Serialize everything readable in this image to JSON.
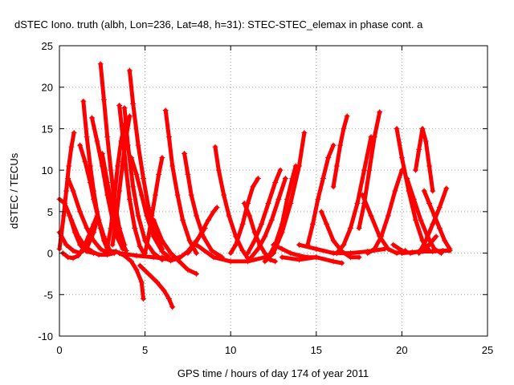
{
  "chart_data": {
    "type": "scatter",
    "title": "dSTEC Iono. truth (albh, Lon=236, Lat=48, h=31): STEC-STEC_elemax in phase cont. a",
    "xlabel": "GPS time / hours of day 174 of year 2011",
    "ylabel": "dSTEC  / TECUs",
    "xlim": [
      0,
      25
    ],
    "ylim": [
      -10,
      25
    ],
    "xticks": [
      0,
      5,
      10,
      15,
      20,
      25
    ],
    "yticks": [
      -10,
      -5,
      0,
      5,
      10,
      15,
      20,
      25
    ],
    "grid": true,
    "marker": "plus",
    "color": "#ff0000",
    "series": [
      {
        "x": [
          0.0,
          0.3,
          0.6,
          0.9,
          1.2,
          1.6,
          2.0
        ],
        "y": [
          6.5,
          6.0,
          4.5,
          2.5,
          1.0,
          0.2,
          0.0
        ]
      },
      {
        "x": [
          0.0,
          0.1,
          0.25,
          0.4,
          0.55,
          0.7,
          0.85
        ],
        "y": [
          0.5,
          2.0,
          4.5,
          7.5,
          10.5,
          12.8,
          14.5
        ]
      },
      {
        "x": [
          0.0,
          0.4,
          0.8,
          1.2,
          1.6,
          2.0,
          2.2
        ],
        "y": [
          2.5,
          1.0,
          0.3,
          0.0,
          0.6,
          2.5,
          4.0
        ]
      },
      {
        "x": [
          0.3,
          0.7,
          1.1,
          1.5,
          1.9,
          2.3,
          2.8,
          3.2
        ],
        "y": [
          6.0,
          4.0,
          2.0,
          0.8,
          0.2,
          -0.2,
          -0.2,
          0.0
        ]
      },
      {
        "x": [
          0.5,
          0.8,
          1.2,
          1.6,
          2.0,
          2.4,
          2.8
        ],
        "y": [
          9.0,
          7.5,
          5.0,
          3.0,
          1.5,
          0.5,
          0.0
        ]
      },
      {
        "x": [
          0.2,
          0.5,
          0.8,
          1.1,
          1.4,
          1.7,
          2.0,
          2.2
        ],
        "y": [
          0.0,
          -0.5,
          -0.6,
          -0.3,
          0.6,
          2.0,
          3.5,
          4.5
        ]
      },
      {
        "x": [
          1.4,
          1.6,
          1.8,
          2.0,
          2.2,
          2.4,
          2.6,
          2.8
        ],
        "y": [
          18.3,
          14.0,
          10.5,
          7.5,
          5.0,
          3.0,
          1.5,
          0.5
        ]
      },
      {
        "x": [
          1.2,
          1.5,
          1.8,
          2.0,
          2.3,
          2.6,
          2.9
        ],
        "y": [
          13.0,
          11.0,
          8.5,
          6.5,
          4.0,
          2.0,
          0.5
        ]
      },
      {
        "x": [
          1.9,
          2.2,
          2.5,
          2.8,
          3.1,
          3.4,
          3.7
        ],
        "y": [
          16.3,
          13.5,
          10.5,
          7.0,
          4.0,
          1.8,
          0.5
        ]
      },
      {
        "x": [
          2.4,
          2.6,
          2.8,
          3.0,
          3.2,
          3.5,
          3.8
        ],
        "y": [
          22.8,
          18.5,
          14.0,
          10.0,
          6.5,
          3.0,
          1.0
        ]
      },
      {
        "x": [
          2.5,
          2.8,
          3.1,
          3.3,
          3.6,
          3.9
        ],
        "y": [
          12.0,
          8.5,
          5.5,
          3.5,
          1.5,
          0.3
        ]
      },
      {
        "x": [
          2.8,
          3.0,
          3.2,
          3.4,
          3.6,
          3.8
        ],
        "y": [
          0.8,
          3.0,
          6.5,
          10.5,
          13.5,
          15.5
        ]
      },
      {
        "x": [
          3.1,
          3.3,
          3.5,
          3.7,
          3.9,
          4.1
        ],
        "y": [
          1.0,
          4.0,
          7.5,
          11.0,
          14.0,
          16.5
        ]
      },
      {
        "x": [
          3.5,
          3.7,
          3.9,
          4.1,
          4.4,
          4.7,
          5.0
        ],
        "y": [
          17.8,
          14.0,
          10.0,
          6.5,
          3.0,
          0.8,
          -0.3
        ]
      },
      {
        "x": [
          3.8,
          4.0,
          4.3,
          4.6,
          5.0,
          5.5,
          6.0
        ],
        "y": [
          17.5,
          13.0,
          8.0,
          4.5,
          1.5,
          0.0,
          -0.8
        ]
      },
      {
        "x": [
          2.8,
          3.3,
          3.8,
          4.2,
          4.5,
          4.8,
          4.9
        ],
        "y": [
          0.2,
          0.2,
          -0.3,
          -1.0,
          -2.0,
          -3.5,
          -5.5
        ]
      },
      {
        "x": [
          4.1,
          4.3,
          4.6,
          4.9,
          5.2,
          5.6,
          6.0
        ],
        "y": [
          22.0,
          18.0,
          13.0,
          9.0,
          5.5,
          2.5,
          0.5
        ]
      },
      {
        "x": [
          4.2,
          4.5,
          4.8,
          5.1,
          5.5,
          6.0,
          6.4
        ],
        "y": [
          11.5,
          9.5,
          7.0,
          4.5,
          2.0,
          0.2,
          -0.5
        ]
      },
      {
        "x": [
          4.7,
          5.2,
          5.7,
          6.1,
          6.4,
          6.6
        ],
        "y": [
          -1.5,
          -2.5,
          -3.5,
          -4.5,
          -5.5,
          -6.5
        ]
      },
      {
        "x": [
          3.5,
          4.5,
          5.5,
          6.5,
          7.0
        ],
        "y": [
          0.0,
          -0.3,
          -0.5,
          -0.8,
          -0.5
        ]
      },
      {
        "x": [
          5.0,
          5.2,
          5.4,
          5.6,
          5.8,
          6.0
        ],
        "y": [
          0.0,
          2.0,
          4.5,
          7.0,
          9.5,
          11.5
        ]
      },
      {
        "x": [
          6.2,
          6.4,
          6.6,
          6.9,
          7.2,
          7.6,
          8.0
        ],
        "y": [
          17.2,
          14.0,
          10.5,
          7.0,
          4.0,
          1.5,
          0.0
        ]
      },
      {
        "x": [
          5.5,
          6.0,
          6.5,
          7.0,
          7.5,
          8.0
        ],
        "y": [
          4.0,
          1.5,
          0.0,
          -1.0,
          -2.0,
          -2.5
        ]
      },
      {
        "x": [
          6.0,
          6.5,
          7.0,
          7.5,
          8.0,
          8.5
        ],
        "y": [
          -0.5,
          -0.9,
          -0.6,
          0.2,
          1.5,
          3.0
        ]
      },
      {
        "x": [
          7.3,
          7.5,
          7.7,
          8.0,
          8.4,
          8.9,
          9.5
        ],
        "y": [
          12.0,
          9.5,
          7.0,
          4.5,
          2.0,
          0.3,
          -0.5
        ]
      },
      {
        "x": [
          7.5,
          7.9,
          8.3,
          8.7,
          9.0,
          9.2
        ],
        "y": [
          0.0,
          1.0,
          2.5,
          4.0,
          5.0,
          5.5
        ]
      },
      {
        "x": [
          9.1,
          9.3,
          9.6,
          9.9,
          10.3,
          10.7,
          11.0
        ],
        "y": [
          12.8,
          10.0,
          7.0,
          4.5,
          2.0,
          0.3,
          -0.6
        ]
      },
      {
        "x": [
          8.0,
          9.0,
          10.0,
          11.0,
          12.0,
          12.5
        ],
        "y": [
          1.0,
          -0.5,
          -1.0,
          -1.0,
          -0.5,
          0.0
        ]
      },
      {
        "x": [
          10.0,
          10.3,
          10.7,
          11.0,
          11.3,
          11.6
        ],
        "y": [
          0.0,
          1.0,
          3.5,
          6.0,
          8.0,
          9.0
        ]
      },
      {
        "x": [
          10.8,
          11.1,
          11.4,
          11.7,
          12.0,
          12.3,
          12.6
        ],
        "y": [
          6.0,
          4.5,
          2.5,
          1.0,
          0.0,
          -0.8,
          -1.0
        ]
      },
      {
        "x": [
          11.0,
          11.4,
          11.8,
          12.2,
          12.6,
          12.9
        ],
        "y": [
          0.0,
          1.5,
          3.5,
          6.0,
          8.5,
          10.0
        ]
      },
      {
        "x": [
          11.2,
          11.6,
          12.0,
          12.4,
          12.8,
          13.2
        ],
        "y": [
          -0.5,
          0.5,
          2.0,
          4.0,
          6.5,
          9.0
        ]
      },
      {
        "x": [
          12.0,
          12.5,
          13.0,
          13.5,
          14.0,
          14.3
        ],
        "y": [
          -1.0,
          0.0,
          2.5,
          6.0,
          10.5,
          14.5
        ]
      },
      {
        "x": [
          12.5,
          13.0,
          13.5,
          14.0,
          14.5,
          15.0
        ],
        "y": [
          1.0,
          0.5,
          0.0,
          -0.3,
          -0.5,
          -0.5
        ]
      },
      {
        "x": [
          12.2,
          12.6,
          13.0,
          13.3,
          13.6,
          13.8
        ],
        "y": [
          -0.5,
          1.0,
          3.5,
          6.5,
          9.0,
          10.5
        ]
      },
      {
        "x": [
          13.0,
          14.0,
          15.0,
          16.0,
          16.5
        ],
        "y": [
          -0.5,
          -0.8,
          -0.5,
          -1.0,
          -1.2
        ]
      },
      {
        "x": [
          14.5,
          14.8,
          15.1,
          15.4,
          15.7,
          16.0
        ],
        "y": [
          1.0,
          3.5,
          6.5,
          9.0,
          11.5,
          13.0
        ]
      },
      {
        "x": [
          15.3,
          15.6,
          16.0,
          16.5,
          17.0,
          17.5
        ],
        "y": [
          5.0,
          3.5,
          1.5,
          0.2,
          -0.5,
          -0.5
        ]
      },
      {
        "x": [
          14.0,
          15.0,
          16.0,
          17.0,
          18.0,
          19.0
        ],
        "y": [
          1.0,
          0.5,
          0.0,
          0.0,
          0.2,
          0.5
        ]
      },
      {
        "x": [
          16.0,
          16.2,
          16.4,
          16.6,
          16.8
        ],
        "y": [
          8.0,
          10.5,
          13.0,
          15.0,
          16.5
        ]
      },
      {
        "x": [
          16.2,
          16.6,
          17.0,
          17.4,
          17.8,
          18.2
        ],
        "y": [
          0.0,
          1.0,
          3.0,
          6.0,
          10.0,
          14.0
        ]
      },
      {
        "x": [
          17.5,
          17.8,
          18.1,
          18.4,
          18.7
        ],
        "y": [
          3.0,
          6.0,
          10.0,
          14.0,
          17.0
        ]
      },
      {
        "x": [
          17.7,
          18.2,
          18.7,
          19.2,
          19.7,
          20.2
        ],
        "y": [
          7.0,
          4.5,
          2.0,
          0.5,
          0.0,
          0.3
        ]
      },
      {
        "x": [
          18.0,
          18.4,
          18.8,
          19.2,
          19.6,
          20.0
        ],
        "y": [
          0.0,
          0.5,
          2.0,
          4.5,
          7.5,
          10.0
        ]
      },
      {
        "x": [
          19.7,
          20.0,
          20.4,
          20.8,
          21.2,
          21.6
        ],
        "y": [
          15.0,
          11.5,
          7.5,
          4.0,
          1.5,
          0.3
        ]
      },
      {
        "x": [
          19.5,
          20.0,
          20.5,
          21.0,
          21.5,
          22.0
        ],
        "y": [
          1.0,
          0.3,
          0.0,
          0.2,
          0.8,
          2.0
        ]
      },
      {
        "x": [
          20.3,
          20.7,
          21.1,
          21.5,
          21.9,
          22.3
        ],
        "y": [
          9.0,
          6.5,
          4.0,
          2.0,
          0.5,
          0.0
        ]
      },
      {
        "x": [
          20.8,
          21.0,
          21.2,
          21.4,
          21.6,
          21.8
        ],
        "y": [
          10.0,
          12.5,
          15.0,
          13.5,
          10.5,
          7.5
        ]
      },
      {
        "x": [
          21.0,
          21.4,
          21.8,
          22.2,
          22.6
        ],
        "y": [
          0.0,
          1.5,
          3.5,
          5.5,
          7.8
        ]
      },
      {
        "x": [
          20.0,
          20.6,
          21.2,
          21.8,
          22.4,
          22.8
        ],
        "y": [
          0.0,
          0.1,
          0.2,
          0.2,
          0.3,
          0.3
        ]
      },
      {
        "x": [
          21.3,
          21.6,
          21.9,
          22.2,
          22.5,
          22.8
        ],
        "y": [
          7.5,
          6.0,
          4.5,
          3.0,
          1.5,
          0.5
        ]
      }
    ]
  }
}
